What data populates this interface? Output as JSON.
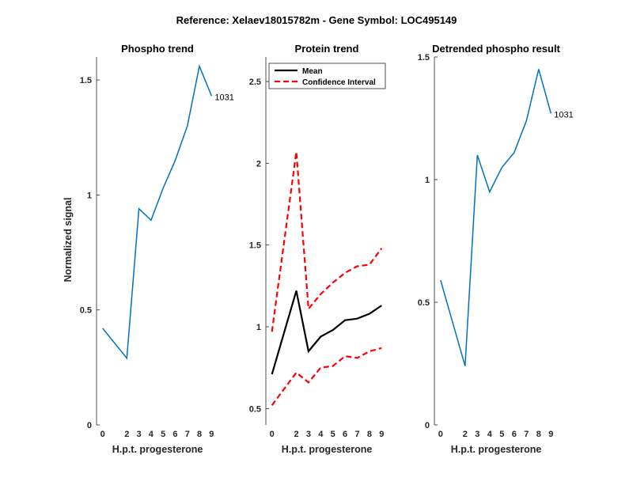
{
  "figure": {
    "suptitle": "Reference:  Xelaev18015782m - Gene Symbol:  LOC495149"
  },
  "chart_data": [
    {
      "type": "line",
      "title": "Phospho trend",
      "xlabel": "H.p.t. progesterone",
      "ylabel": "Normalized signal",
      "x": [
        0,
        2,
        3,
        4,
        5,
        6,
        7,
        8,
        9
      ],
      "xticks": [
        "0",
        "2",
        "3",
        "4",
        "5",
        "6",
        "7",
        "8",
        "9"
      ],
      "xlim": [
        -0.5,
        9.5
      ],
      "ylim": [
        0,
        1.6
      ],
      "yticks": [
        "0",
        "0.5",
        "1",
        "1.5"
      ],
      "ytick_values": [
        0,
        0.5,
        1,
        1.5
      ],
      "series": [
        {
          "color": "#0072BD",
          "values": [
            0.42,
            0.29,
            0.94,
            0.89,
            1.03,
            1.15,
            1.3,
            1.56,
            1.43
          ]
        }
      ],
      "end_label": "1031"
    },
    {
      "type": "line",
      "title": "Protein trend",
      "xlabel": "H.p.t. progesterone",
      "ylabel": "",
      "x": [
        0,
        2,
        3,
        4,
        5,
        6,
        7,
        8,
        9
      ],
      "xticks": [
        "0",
        "2",
        "3",
        "4",
        "5",
        "6",
        "7",
        "8",
        "9"
      ],
      "xlim": [
        -0.5,
        9.5
      ],
      "ylim": [
        0.4,
        2.65
      ],
      "yticks": [
        "0.5",
        "1",
        "1.5",
        "2",
        "2.5"
      ],
      "ytick_values": [
        0.5,
        1,
        1.5,
        2,
        2.5
      ],
      "legend": {
        "placement": "top-left"
      },
      "series": [
        {
          "name": "Mean",
          "color": "#000000",
          "dash": "solid",
          "values": [
            0.71,
            1.22,
            0.85,
            0.94,
            0.98,
            1.04,
            1.05,
            1.08,
            1.13
          ]
        },
        {
          "name": "Confidence Interval",
          "color": "#FF0000",
          "dash": "dashed",
          "values": [
            0.97,
            2.07,
            1.11,
            1.2,
            1.27,
            1.33,
            1.37,
            1.38,
            1.48
          ]
        },
        {
          "color": "#FF0000",
          "dash": "dashed",
          "values": [
            0.52,
            0.72,
            0.66,
            0.75,
            0.76,
            0.82,
            0.81,
            0.85,
            0.87
          ]
        }
      ]
    },
    {
      "type": "line",
      "title": "Detrended phospho result",
      "xlabel": "H.p.t. progesterone",
      "ylabel": "",
      "x": [
        0,
        2,
        3,
        4,
        5,
        6,
        7,
        8,
        9
      ],
      "xticks": [
        "0",
        "2",
        "3",
        "4",
        "5",
        "6",
        "7",
        "8",
        "9"
      ],
      "xlim": [
        -0.5,
        9.5
      ],
      "ylim": [
        0,
        1.5
      ],
      "yticks": [
        "0",
        "0.5",
        "1",
        "1.5"
      ],
      "ytick_values": [
        0,
        0.5,
        1,
        1.5
      ],
      "series": [
        {
          "color": "#0072BD",
          "values": [
            0.59,
            0.24,
            1.1,
            0.95,
            1.05,
            1.11,
            1.24,
            1.45,
            1.27
          ]
        }
      ],
      "end_label": "1031"
    }
  ]
}
